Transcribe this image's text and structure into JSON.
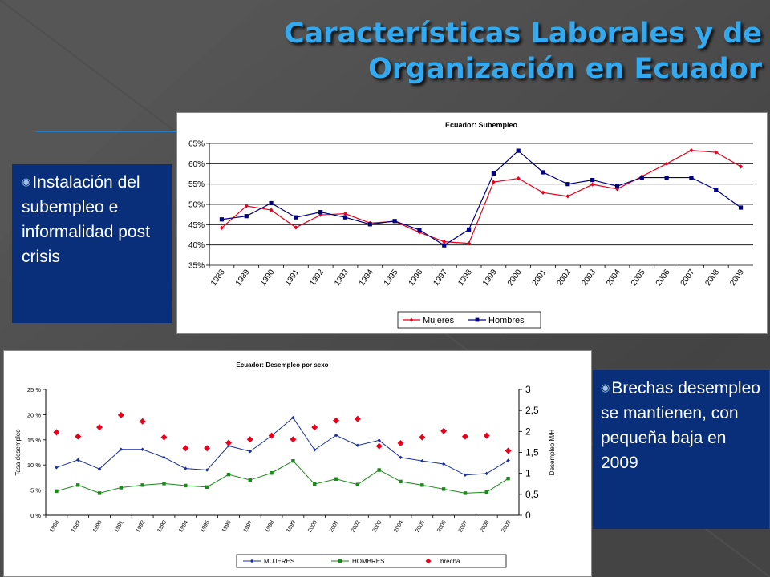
{
  "slide": {
    "title_line1": "Características Laborales y de",
    "title_line2": "Organización en Ecuador",
    "bullet1": "Instalación del subempleo e informalidad post crisis",
    "bullet2": "Brechas desempleo se mantienen, con pequeña baja en 2009",
    "bullet_glyph": "◉",
    "colors": {
      "background": "#4a4a4a",
      "title": "#33aaf0",
      "box": "#0a2f7a"
    }
  },
  "chart_data": [
    {
      "type": "line",
      "title": "Ecuador: Subempleo",
      "categories": [
        "1988",
        "1989",
        "1990",
        "1991",
        "1992",
        "1993",
        "1994",
        "1995",
        "1996",
        "1997",
        "1998",
        "1999",
        "2000",
        "2001",
        "2002",
        "2003",
        "2004",
        "2005",
        "2006",
        "2007",
        "2008",
        "2009"
      ],
      "series": [
        {
          "name": "Mujeres",
          "color": "#e8001c",
          "marker": "diamond",
          "values": [
            0.442,
            0.496,
            0.486,
            0.443,
            0.474,
            0.477,
            0.454,
            0.458,
            0.431,
            0.408,
            0.404,
            0.555,
            0.564,
            0.529,
            0.52,
            0.549,
            0.538,
            0.569,
            0.6,
            0.633,
            0.628,
            0.593
          ]
        },
        {
          "name": "Hombres",
          "color": "#000080",
          "marker": "square",
          "values": [
            0.463,
            0.471,
            0.503,
            0.468,
            0.481,
            0.468,
            0.451,
            0.459,
            0.437,
            0.399,
            0.438,
            0.576,
            0.632,
            0.579,
            0.55,
            0.56,
            0.545,
            0.566,
            0.566,
            0.566,
            0.536,
            0.492
          ]
        }
      ],
      "ylim": [
        0.35,
        0.65
      ],
      "yticks": [
        "35%",
        "40%",
        "45%",
        "50%",
        "55%",
        "60%",
        "65%"
      ],
      "legend": "bottom-right",
      "grid": true
    },
    {
      "type": "line",
      "title": "Ecuador: Desempleo por sexo",
      "ylabel": "Tasa desempleo",
      "ylabel2": "Desempleo M/H",
      "categories": [
        "1988",
        "1989",
        "1990",
        "1991",
        "1992",
        "1993",
        "1994",
        "1995",
        "1996",
        "1997",
        "1998",
        "1999",
        "2000",
        "2001",
        "2002",
        "2003",
        "2004",
        "2005",
        "2006",
        "2007",
        "2008",
        "2009"
      ],
      "series": [
        {
          "name": "MUJERES",
          "axis": "left",
          "color": "#1a2fa0",
          "marker": "diamond",
          "values": [
            9.5,
            11.0,
            9.2,
            13.1,
            13.1,
            11.5,
            9.3,
            9.0,
            13.8,
            12.7,
            15.8,
            19.4,
            13.0,
            15.9,
            13.9,
            14.9,
            11.5,
            10.8,
            10.2,
            8.0,
            8.3,
            10.9
          ]
        },
        {
          "name": "HOMBRES",
          "axis": "left",
          "color": "#1b8a1b",
          "marker": "square",
          "values": [
            4.8,
            6.0,
            4.4,
            5.5,
            6.0,
            6.3,
            5.9,
            5.6,
            8.1,
            7.0,
            8.4,
            10.8,
            6.2,
            7.2,
            6.1,
            9.0,
            6.7,
            6.0,
            5.2,
            4.4,
            4.6,
            7.3
          ]
        },
        {
          "name": "brecha",
          "axis": "right",
          "color": "#e8001c",
          "marker": "diamond",
          "line": false,
          "values": [
            1.98,
            1.88,
            2.1,
            2.39,
            2.24,
            1.86,
            1.6,
            1.6,
            1.73,
            1.81,
            1.9,
            1.81,
            2.1,
            2.26,
            2.3,
            1.65,
            1.72,
            1.86,
            2.01,
            1.88,
            1.9,
            1.54
          ]
        }
      ],
      "ylim": [
        0,
        25
      ],
      "yticks": [
        "0 %",
        "5 %",
        "10 %",
        "15 %",
        "20 %",
        "25 %"
      ],
      "y2lim": [
        0,
        3
      ],
      "y2ticks": [
        "0",
        "0,5",
        "1",
        "1,5",
        "2",
        "2,5",
        "3"
      ],
      "legend": "bottom",
      "grid": false
    }
  ]
}
